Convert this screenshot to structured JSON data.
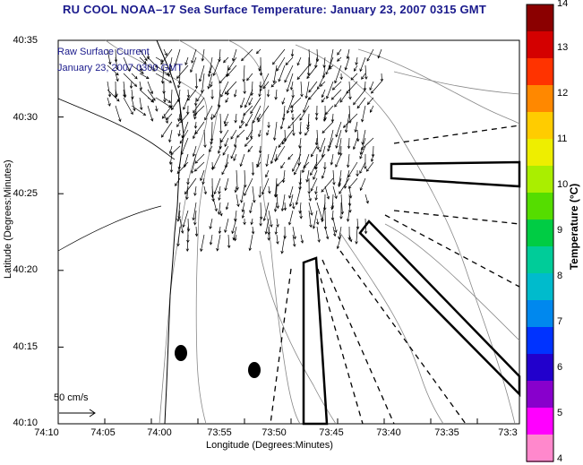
{
  "title": "RU COOL  NOAA–17  Sea Surface Temperature:  January 23, 2007 0315 GMT",
  "legend": {
    "line1": "Raw Surface Current",
    "line2": "January 23, 2007 0300 GMT"
  },
  "axes": {
    "xlabel": "Longitude (Degrees:Minutes)",
    "ylabel": "Latitude (Degrees:Minutes)",
    "xticks": [
      "74:10",
      "74:05",
      "74:00",
      "73:55",
      "73:50",
      "73:45",
      "73:40",
      "73:35",
      "73:3"
    ],
    "yticks": [
      "40:35",
      "40:30",
      "40:25",
      "40:20",
      "40:15",
      "40:10"
    ]
  },
  "scale": {
    "label": "50 cm/s"
  },
  "colorbar": {
    "label": "Temperature (°C)",
    "ticks": [
      "14",
      "13",
      "12",
      "11",
      "10",
      "9",
      "8",
      "7",
      "6",
      "5",
      "4"
    ],
    "colors": [
      "#8b0000",
      "#d40000",
      "#ff3300",
      "#ff8800",
      "#ffcc00",
      "#eeee00",
      "#aaee00",
      "#55dd00",
      "#00cc44",
      "#00cc99",
      "#00bbcc",
      "#0088ee",
      "#0033ff",
      "#2200cc",
      "#8800cc",
      "#ff00ff",
      "#ff88cc"
    ]
  },
  "colors": {
    "title": "#1a1a8c",
    "vector": "#000000",
    "contour": "#888888"
  }
}
